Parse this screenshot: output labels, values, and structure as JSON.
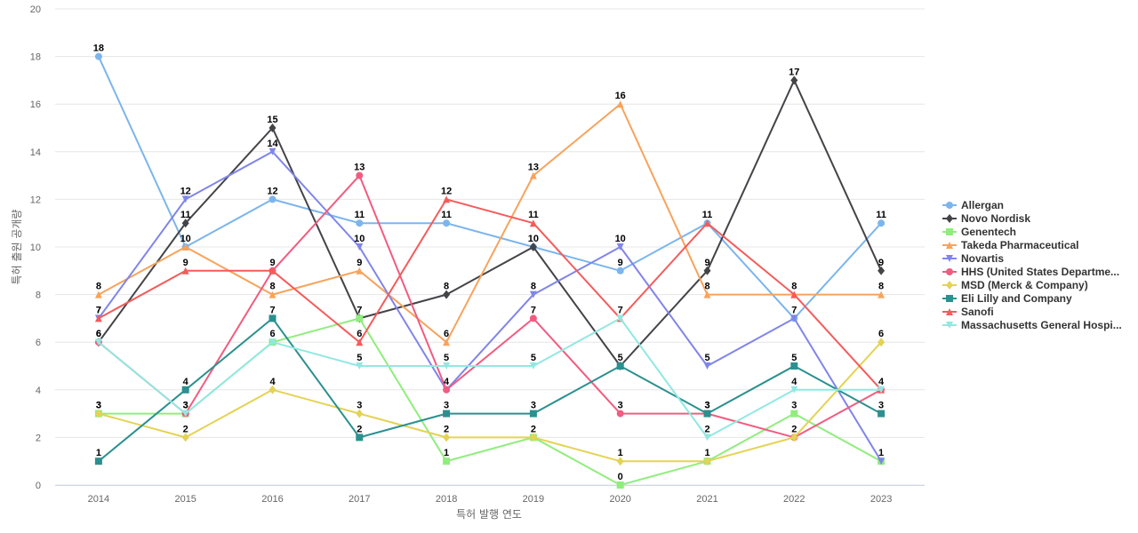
{
  "chart_data": {
    "type": "line",
    "title": "",
    "xlabel": "특허 발행 연도",
    "ylabel": "특허 출원 공개량",
    "ylim": [
      0,
      20
    ],
    "yticks": [
      0,
      2,
      4,
      6,
      8,
      10,
      12,
      14,
      16,
      18,
      20
    ],
    "grid": true,
    "legend_position": "right",
    "categories": [
      "2014",
      "2015",
      "2016",
      "2017",
      "2018",
      "2019",
      "2020",
      "2021",
      "2022",
      "2023"
    ],
    "series": [
      {
        "name": "Allergan",
        "color": "#7cb5ec",
        "marker": "circle",
        "values": [
          18,
          10,
          12,
          11,
          11,
          10,
          9,
          11,
          7,
          11
        ]
      },
      {
        "name": "Novo Nordisk",
        "color": "#434348",
        "marker": "diamond",
        "values": [
          6,
          11,
          15,
          7,
          8,
          10,
          5,
          9,
          17,
          9
        ]
      },
      {
        "name": "Genentech",
        "color": "#90ed7d",
        "marker": "square",
        "values": [
          3,
          3,
          6,
          7,
          1,
          2,
          0,
          1,
          3,
          1
        ]
      },
      {
        "name": "Takeda Pharmaceutical",
        "color": "#f7a35c",
        "marker": "triangle",
        "values": [
          8,
          10,
          8,
          9,
          6,
          13,
          16,
          8,
          8,
          8
        ]
      },
      {
        "name": "Novartis",
        "color": "#8085e9",
        "marker": "triangle-down",
        "values": [
          7,
          12,
          14,
          10,
          4,
          8,
          10,
          5,
          7,
          1
        ]
      },
      {
        "name": "HHS (United States Departme...",
        "color": "#f15c80",
        "marker": "circle",
        "values": [
          6,
          3,
          9,
          13,
          4,
          7,
          3,
          3,
          2,
          4
        ]
      },
      {
        "name": "MSD (Merck & Company)",
        "color": "#e4d354",
        "marker": "diamond",
        "values": [
          3,
          2,
          4,
          3,
          2,
          2,
          1,
          1,
          2,
          6
        ]
      },
      {
        "name": "Eli Lilly and Company",
        "color": "#2b908f",
        "marker": "square",
        "values": [
          1,
          4,
          7,
          2,
          3,
          3,
          5,
          3,
          5,
          3
        ]
      },
      {
        "name": "Sanofi",
        "color": "#f45b5b",
        "marker": "triangle",
        "values": [
          7,
          9,
          9,
          6,
          12,
          11,
          7,
          11,
          8,
          4
        ]
      },
      {
        "name": "Massachusetts General Hospi...",
        "color": "#91e8e1",
        "marker": "triangle-down",
        "values": [
          6,
          3,
          6,
          5,
          5,
          5,
          7,
          2,
          4,
          4
        ]
      }
    ],
    "data_labels": {
      "2014": [
        "18",
        "8",
        "7",
        "7",
        "6",
        "6",
        "3",
        "3",
        "1"
      ],
      "2015": [
        "12",
        "11",
        "10",
        "9",
        "4",
        "3",
        "3",
        "2"
      ],
      "2016": [
        "15",
        "14",
        "12",
        "9",
        "8",
        "7",
        "6",
        "4"
      ],
      "2017": [
        "13",
        "11",
        "10",
        "9",
        "7",
        "6",
        "5",
        "3",
        "2"
      ],
      "2018": [
        "12",
        "11",
        "8",
        "6",
        "5",
        "4",
        "3",
        "2",
        "1"
      ],
      "2019": [
        "13",
        "11",
        "10",
        "8",
        "7",
        "5",
        "3",
        "2"
      ],
      "2020": [
        "16",
        "10",
        "9",
        "7",
        "5",
        "3",
        "1",
        "0"
      ],
      "2021": [
        "11",
        "9",
        "8",
        "5",
        "3",
        "3",
        "2",
        "1"
      ],
      "2022": [
        "17",
        "8",
        "7",
        "5",
        "4",
        "3",
        "2"
      ],
      "2023": [
        "11",
        "9",
        "8",
        "6",
        "4",
        "3",
        "1"
      ]
    }
  }
}
